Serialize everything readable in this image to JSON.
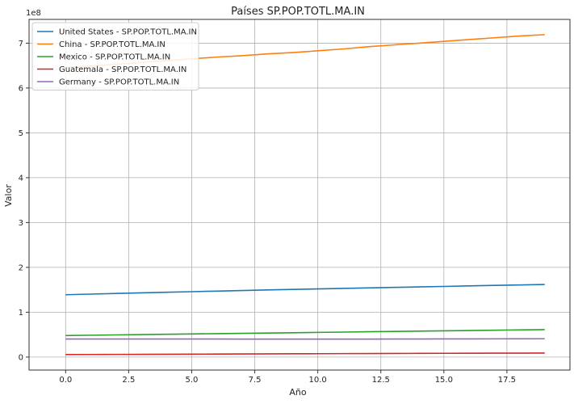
{
  "chart_data": {
    "type": "line",
    "title": "Países SP.POP.TOTL.MA.IN",
    "xlabel": "Año",
    "ylabel": "Valor",
    "y_multiplier_label": "1e8",
    "xlim": [
      -1.45,
      20.0
    ],
    "ylim": [
      -0.29,
      7.53
    ],
    "y_scale_factor": 100000000,
    "grid": true,
    "legend_position": "top-left",
    "x_ticks": [
      0.0,
      2.5,
      5.0,
      7.5,
      10.0,
      12.5,
      15.0,
      17.5
    ],
    "x_tick_labels": [
      "0.0",
      "2.5",
      "5.0",
      "7.5",
      "10.0",
      "12.5",
      "15.0",
      "17.5"
    ],
    "y_ticks": [
      0,
      1,
      2,
      3,
      4,
      5,
      6,
      7
    ],
    "y_tick_labels": [
      "0",
      "1",
      "2",
      "3",
      "4",
      "5",
      "6",
      "7"
    ],
    "x": [
      0,
      1,
      2,
      3,
      4,
      5,
      6,
      7,
      8,
      9,
      10,
      11,
      12,
      13,
      14,
      15,
      16,
      17,
      18,
      19
    ],
    "series": [
      {
        "name": "United States - SP.POP.TOTL.MA.IN",
        "color": "#1f77b4",
        "values": [
          1.39,
          1.404,
          1.418,
          1.432,
          1.445,
          1.458,
          1.471,
          1.484,
          1.497,
          1.509,
          1.52,
          1.531,
          1.542,
          1.553,
          1.564,
          1.575,
          1.587,
          1.598,
          1.608,
          1.618
        ]
      },
      {
        "name": "China - SP.POP.TOTL.MA.IN",
        "color": "#ff7f0e",
        "values": [
          6.45,
          6.49,
          6.53,
          6.57,
          6.61,
          6.65,
          6.69,
          6.72,
          6.76,
          6.79,
          6.83,
          6.87,
          6.92,
          6.96,
          7.0,
          7.04,
          7.08,
          7.12,
          7.16,
          7.19
        ]
      },
      {
        "name": "Mexico - SP.POP.TOTL.MA.IN",
        "color": "#2ca02c",
        "values": [
          0.48,
          0.487,
          0.494,
          0.501,
          0.508,
          0.515,
          0.522,
          0.529,
          0.536,
          0.543,
          0.55,
          0.557,
          0.564,
          0.571,
          0.578,
          0.585,
          0.592,
          0.599,
          0.606,
          0.612
        ]
      },
      {
        "name": "Guatemala - SP.POP.TOTL.MA.IN",
        "color": "#d62728",
        "values": [
          0.055,
          0.057,
          0.059,
          0.061,
          0.063,
          0.065,
          0.067,
          0.069,
          0.071,
          0.073,
          0.075,
          0.077,
          0.079,
          0.081,
          0.082,
          0.084,
          0.085,
          0.087,
          0.088,
          0.09
        ]
      },
      {
        "name": "Germany - SP.POP.TOTL.MA.IN",
        "color": "#9467bd",
        "values": [
          0.403,
          0.403,
          0.402,
          0.402,
          0.402,
          0.402,
          0.402,
          0.401,
          0.401,
          0.401,
          0.401,
          0.4,
          0.401,
          0.402,
          0.403,
          0.404,
          0.405,
          0.406,
          0.407,
          0.408
        ]
      }
    ]
  }
}
